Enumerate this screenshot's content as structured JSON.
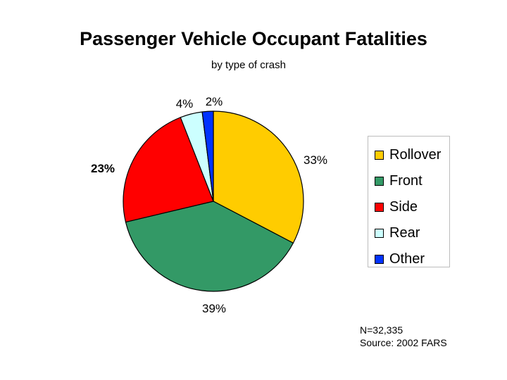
{
  "chart_data": {
    "type": "pie",
    "title": "Passenger Vehicle Occupant Fatalities",
    "subtitle": "by type of crash",
    "categories": [
      "Rollover",
      "Front",
      "Side",
      "Rear",
      "Other"
    ],
    "values": [
      33,
      39,
      23,
      4,
      2
    ],
    "data_labels": [
      "33%",
      "39%",
      "23%",
      "4%",
      "2%"
    ],
    "colors": [
      "#FFCC00",
      "#339966",
      "#FF0000",
      "#CCFFFF",
      "#0033FF"
    ],
    "legend_placement": "right",
    "start": "top, clockwise"
  },
  "notes": {
    "n": "N=32,335",
    "source": "Source: 2002 FARS"
  }
}
